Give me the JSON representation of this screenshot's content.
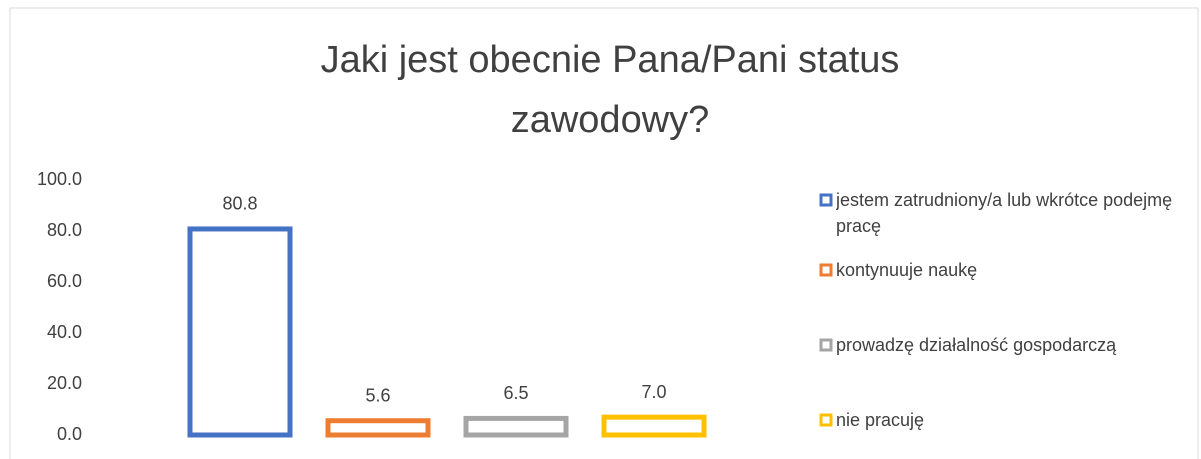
{
  "chart_data": {
    "type": "bar",
    "title": "Jaki jest obecnie Pana/Pani status zawodowy?",
    "series": [
      {
        "name": "jestem zatrudniony/a lub wkrótce podejmę pracę",
        "color": "#4472c4",
        "values": [
          80.8
        ],
        "value_labels": [
          "80.8"
        ]
      },
      {
        "name": "kontynuuje naukę",
        "color": "#ed7d31",
        "values": [
          5.6
        ],
        "value_labels": [
          "5.6"
        ]
      },
      {
        "name": "prowadzę działalność gospodarczą",
        "color": "#a5a5a5",
        "values": [
          6.5
        ],
        "value_labels": [
          "6.5"
        ]
      },
      {
        "name": "nie pracuję",
        "color": "#ffc000",
        "values": [
          7.0
        ],
        "value_labels": [
          "7.0"
        ]
      }
    ],
    "ylim": [
      0,
      100
    ],
    "yticks": [
      {
        "value": 0,
        "label": "0.0"
      },
      {
        "value": 20,
        "label": "20.0"
      },
      {
        "value": 40,
        "label": "40.0"
      },
      {
        "value": 60,
        "label": "60.0"
      },
      {
        "value": 80,
        "label": "80.0"
      },
      {
        "value": 100,
        "label": "100.0"
      }
    ],
    "grid": false,
    "legend": "right"
  }
}
